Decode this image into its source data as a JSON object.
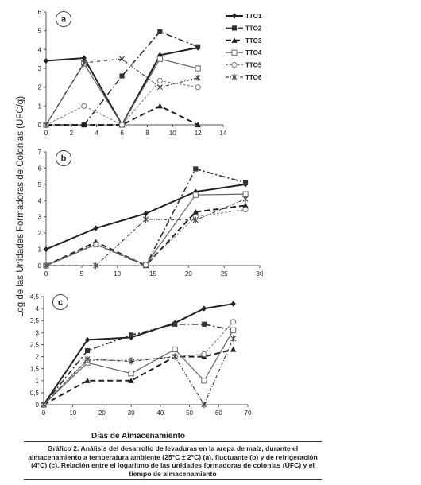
{
  "figure": {
    "ylabel": "Log de las Unidades Formadoras de Colonias (UFC/g)",
    "xlabel": "Días de Almacenamiento",
    "caption": "Gráfico 2. Análisis del desarrollo de levaduras en la arepa de maíz, durante el almacenamiento a temperatura ambiente (25°C ± 2°C) (a), fluctuante (b) y de refrigeración (4°C) (c). Relación entre el logaritmo de las unidades formadoras de colonias (UFC) y el tiempo de almacenamiento",
    "colors": {
      "TTO1": "#222222",
      "TTO2": "#333333",
      "TTO3": "#222222",
      "TTO4": "#666666",
      "TTO5": "#777777",
      "TTO6": "#444444"
    }
  },
  "chart_data": [
    {
      "type": "line",
      "panel": "a",
      "xlim": [
        0,
        14
      ],
      "ylim": [
        0,
        6
      ],
      "xticks": [
        "0",
        "2",
        "4",
        "6",
        "8",
        "10",
        "12",
        "14"
      ],
      "yticks": [
        "0",
        "1",
        "2",
        "3",
        "4",
        "5",
        "6"
      ],
      "legend": "top-right",
      "series": [
        {
          "name": "TTO1",
          "x": [
            0,
            3,
            6,
            9,
            12
          ],
          "values": [
            3.4,
            3.55,
            0,
            3.7,
            4.1
          ]
        },
        {
          "name": "TTO2",
          "x": [
            0,
            3,
            6,
            9,
            12
          ],
          "values": [
            0,
            0,
            2.6,
            4.95,
            4.15
          ]
        },
        {
          "name": "TTO3",
          "x": [
            0,
            3,
            6,
            9,
            12
          ],
          "values": [
            0,
            0,
            0,
            1.0,
            0
          ]
        },
        {
          "name": "TTO4",
          "x": [
            0,
            3,
            6,
            9,
            12
          ],
          "values": [
            0,
            3.25,
            0,
            3.5,
            3.0
          ]
        },
        {
          "name": "TTO5",
          "x": [
            0,
            3,
            6,
            9,
            12
          ],
          "values": [
            0,
            1.0,
            0,
            2.35,
            2.0
          ]
        },
        {
          "name": "TTO6",
          "x": [
            0,
            3,
            6,
            9,
            12
          ],
          "values": [
            0,
            3.3,
            3.5,
            2.0,
            2.5
          ]
        }
      ]
    },
    {
      "type": "line",
      "panel": "b",
      "xlim": [
        0,
        30
      ],
      "ylim": [
        0,
        7
      ],
      "xticks": [
        "0",
        "5",
        "10",
        "15",
        "20",
        "25",
        "30"
      ],
      "yticks": [
        "0",
        "1",
        "2",
        "3",
        "4",
        "5",
        "6",
        "7"
      ],
      "series": [
        {
          "name": "TTO1",
          "x": [
            0,
            7,
            14,
            21,
            28
          ],
          "values": [
            1.0,
            2.3,
            3.2,
            4.55,
            5.0
          ]
        },
        {
          "name": "TTO2",
          "x": [
            0,
            7,
            14,
            21,
            28
          ],
          "values": [
            0,
            1.3,
            0,
            5.95,
            5.1
          ]
        },
        {
          "name": "TTO3",
          "x": [
            0,
            7,
            14,
            21,
            28
          ],
          "values": [
            0,
            1.45,
            0,
            3.3,
            3.7
          ]
        },
        {
          "name": "TTO4",
          "x": [
            0,
            7,
            14,
            21,
            28
          ],
          "values": [
            0,
            1.3,
            0.05,
            4.35,
            4.4
          ]
        },
        {
          "name": "TTO5",
          "x": [
            0,
            7,
            14,
            21,
            28
          ],
          "values": [
            0,
            1.3,
            0.05,
            3.0,
            3.45
          ]
        },
        {
          "name": "TTO6",
          "x": [
            0,
            7,
            14,
            21,
            28
          ],
          "values": [
            0,
            0,
            2.85,
            2.8,
            4.1
          ]
        }
      ]
    },
    {
      "type": "line",
      "panel": "c",
      "xlim": [
        0,
        70
      ],
      "ylim": [
        0,
        4.5
      ],
      "xticks": [
        "0",
        "10",
        "20",
        "30",
        "40",
        "50",
        "60",
        "70"
      ],
      "yticks": [
        "0",
        "0,5",
        "1",
        "1,5",
        "2",
        "2,5",
        "3",
        "3,5",
        "4",
        "4,5"
      ],
      "series": [
        {
          "name": "TTO1",
          "x": [
            0,
            15,
            30,
            45,
            55,
            65
          ],
          "values": [
            0,
            2.7,
            2.8,
            3.4,
            4.0,
            4.2
          ]
        },
        {
          "name": "TTO2",
          "x": [
            0,
            15,
            30,
            45,
            55,
            65
          ],
          "values": [
            0,
            2.25,
            2.9,
            3.35,
            3.35,
            3.1
          ]
        },
        {
          "name": "TTO3",
          "x": [
            0,
            15,
            30,
            45,
            55,
            65
          ],
          "values": [
            0,
            1.0,
            1.0,
            2.0,
            2.0,
            2.3
          ]
        },
        {
          "name": "TTO4",
          "x": [
            0,
            15,
            30,
            45,
            55,
            65
          ],
          "values": [
            0,
            1.75,
            1.3,
            2.3,
            1.0,
            3.1
          ]
        },
        {
          "name": "TTO5",
          "x": [
            0,
            15,
            30,
            45,
            55,
            65
          ],
          "values": [
            0,
            1.85,
            1.85,
            2.0,
            2.1,
            3.45
          ]
        },
        {
          "name": "TTO6",
          "x": [
            0,
            15,
            30,
            45,
            55,
            65
          ],
          "values": [
            0,
            1.9,
            1.8,
            2.0,
            0,
            2.75
          ]
        }
      ]
    }
  ]
}
